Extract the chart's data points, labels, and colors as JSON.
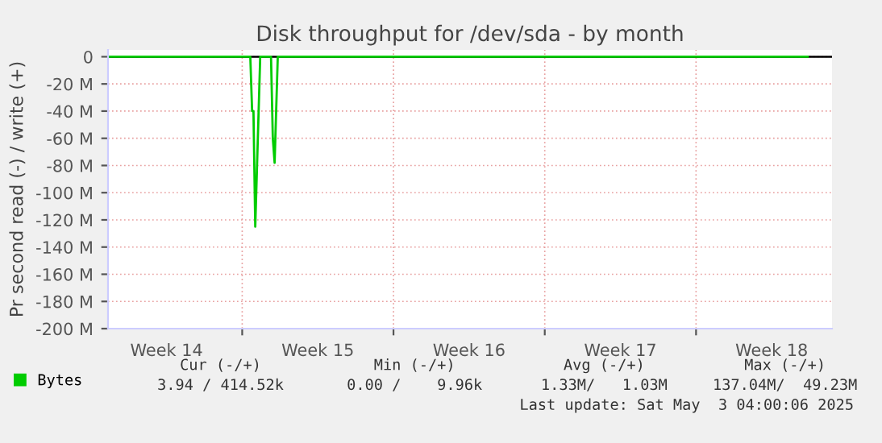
{
  "chart_data": {
    "type": "line",
    "title": "Disk throughput for /dev/sda - by month",
    "ylabel": "Pr second read (-) / write (+)",
    "x": [
      "2025-03-31T20:00",
      "2025-04-07T09:00",
      "2025-04-07T11:00",
      "2025-04-07T12:30",
      "2025-04-07T14:30",
      "2025-04-07T20:00",
      "2025-04-08T08:00",
      "2025-04-08T10:00",
      "2025-04-08T12:00",
      "2025-04-08T15:30",
      "2025-05-03T04:00"
    ],
    "series": [
      {
        "name": "Bytes",
        "color": "#00cc00",
        "values": [
          0,
          0,
          -40,
          -40,
          -125,
          0,
          0,
          -60,
          -78,
          0,
          0
        ]
      }
    ],
    "xlim": [
      "2025-03-31T19:00",
      "2025-05-04T07:00"
    ],
    "xticks": [
      {
        "value": "2025-04-07T00:00",
        "label": null
      },
      {
        "value": "2025-04-14T00:00",
        "label": null
      },
      {
        "value": "2025-04-21T00:00",
        "label": null
      },
      {
        "value": "2025-04-28T00:00",
        "label": null
      },
      {
        "value": "2025-04-03T12:00",
        "label": "Week 14"
      },
      {
        "value": "2025-04-10T12:00",
        "label": "Week 15"
      },
      {
        "value": "2025-04-17T12:00",
        "label": "Week 16"
      },
      {
        "value": "2025-04-24T12:00",
        "label": "Week 17"
      },
      {
        "value": "2025-05-01T12:00",
        "label": "Week 18"
      }
    ],
    "ylim": [
      -200,
      5
    ],
    "yticks": [
      0,
      {
        "value": -20,
        "label": "-20 M"
      },
      {
        "value": -40,
        "label": "-40 M"
      },
      {
        "value": -60,
        "label": "-60 M"
      },
      {
        "value": -80,
        "label": "-80 M"
      },
      {
        "value": -100,
        "label": "-100 M"
      },
      {
        "value": -120,
        "label": "-120 M"
      },
      {
        "value": -140,
        "label": "-140 M"
      },
      {
        "value": -160,
        "label": "-160 M"
      },
      {
        "value": -180,
        "label": "-180 M"
      },
      {
        "value": -200,
        "label": "-200 M"
      }
    ],
    "ref_lines": [
      {
        "axis": "y",
        "value": 0,
        "color": "#000000"
      }
    ],
    "grid": true,
    "legend": "bottom left",
    "line_style": "solid",
    "marker": "none",
    "annotations": [
      "Cur (-/+)",
      "Min (-/+)",
      "Avg (-/+)",
      "Max (-/+)",
      "3.94 / 414.52k",
      "0.00 /    9.96k",
      "1.33M/   1.03M",
      "137.04M/  49.23M",
      "Last update: Sat May  3 04:00:06 2025"
    ]
  }
}
